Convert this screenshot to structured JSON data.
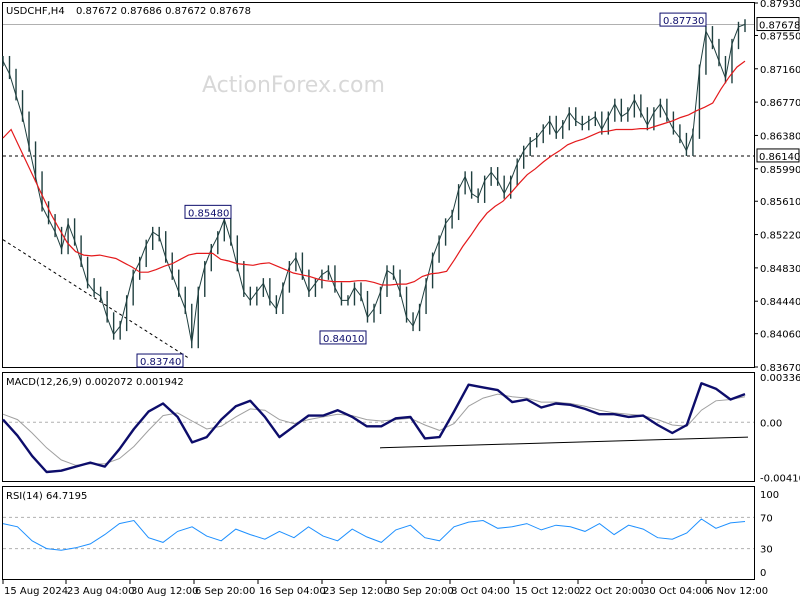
{
  "header": {
    "symbol": "USDCHF,H4",
    "ohlc": "0.87672 0.87686 0.87672 0.87678"
  },
  "watermark": "ActionForex.com",
  "colors": {
    "background": "#ffffff",
    "frame": "#000000",
    "price": "#1f3f3f",
    "ma": "#e41a1c",
    "macd": "#0d0d6b",
    "signal": "#a0a0a0",
    "rsi": "#1e90ff",
    "label_border": "#0d0d6b",
    "watermark": "#d8d8d8"
  },
  "chart_data": [
    {
      "type": "line",
      "panel": "price",
      "title": "USDCHF,H4",
      "ylim": [
        0.8367,
        0.8793
      ],
      "y_ticks": [
        "0.87930",
        "0.87550",
        "0.87160",
        "0.86770",
        "0.86380",
        "0.85990",
        "0.85610",
        "0.85220",
        "0.84830",
        "0.84440",
        "0.84060",
        "0.83670"
      ],
      "x_ticks": [
        "15 Aug 2024",
        "23 Aug 04:00",
        "30 Aug 12:00",
        "6 Sep 20:00",
        "16 Sep 04:00",
        "23 Sep 12:00",
        "30 Sep 20:00",
        "8 Oct 04:00",
        "15 Oct 12:00",
        "22 Oct 20:00",
        "30 Oct 04:00",
        "6 Nov 12:00"
      ],
      "current_price_label": "0.87678",
      "level_label": "0.86140",
      "annotations": [
        "0.87730",
        "0.85480",
        "0.83740",
        "0.84010"
      ],
      "series": [
        {
          "values": [
            0.8725,
            0.871,
            0.8685,
            0.866,
            0.8625,
            0.859,
            0.8555,
            0.854,
            0.8525,
            0.8505,
            0.8535,
            0.8515,
            0.849,
            0.8465,
            0.8455,
            0.845,
            0.8425,
            0.8405,
            0.8415,
            0.8445,
            0.8475,
            0.849,
            0.851,
            0.8525,
            0.852,
            0.8495,
            0.8475,
            0.8455,
            0.8435,
            0.8395,
            0.8455,
            0.8485,
            0.8505,
            0.852,
            0.854,
            0.8515,
            0.8485,
            0.8455,
            0.8445,
            0.8455,
            0.8465,
            0.8445,
            0.8435,
            0.846,
            0.8485,
            0.8495,
            0.8475,
            0.8455,
            0.8465,
            0.8475,
            0.848,
            0.846,
            0.8445,
            0.8445,
            0.846,
            0.845,
            0.8425,
            0.8435,
            0.8455,
            0.848,
            0.8475,
            0.8455,
            0.8425,
            0.8415,
            0.8435,
            0.8465,
            0.8495,
            0.8515,
            0.8535,
            0.8545,
            0.8575,
            0.859,
            0.857,
            0.8565,
            0.8585,
            0.8595,
            0.8585,
            0.857,
            0.8585,
            0.8605,
            0.862,
            0.863,
            0.8635,
            0.8645,
            0.8655,
            0.864,
            0.865,
            0.8665,
            0.8655,
            0.865,
            0.8655,
            0.866,
            0.8645,
            0.866,
            0.8675,
            0.866,
            0.8665,
            0.868,
            0.8665,
            0.865,
            0.8665,
            0.8675,
            0.866,
            0.8645,
            0.8635,
            0.862,
            0.864,
            0.8715,
            0.876,
            0.8745,
            0.8725,
            0.8705,
            0.8745,
            0.8765,
            0.8768
          ]
        },
        {
          "name": "",
          "values": [
            0.8635,
            0.8645,
            0.8625,
            0.8605,
            0.8585,
            0.8565,
            0.8545,
            0.8528,
            0.8512,
            0.8502,
            0.8498,
            0.8497,
            0.8498,
            0.8496,
            0.8494,
            0.8489,
            0.8484,
            0.8478,
            0.8478,
            0.8481,
            0.8485,
            0.8488,
            0.8493,
            0.8498,
            0.85,
            0.85,
            0.85,
            0.8493,
            0.8491,
            0.8488,
            0.8487,
            0.8486,
            0.8488,
            0.8489,
            0.8485,
            0.8481,
            0.8477,
            0.8475,
            0.8473,
            0.847,
            0.8468,
            0.8467,
            0.8467,
            0.8467,
            0.8468,
            0.8468,
            0.8466,
            0.8463,
            0.8463,
            0.8464,
            0.8464,
            0.8467,
            0.8473,
            0.8476,
            0.8477,
            0.8479,
            0.8493,
            0.8508,
            0.8521,
            0.8535,
            0.8547,
            0.8555,
            0.8561,
            0.8571,
            0.8582,
            0.8592,
            0.8599,
            0.8607,
            0.8614,
            0.862,
            0.8627,
            0.8631,
            0.8634,
            0.8638,
            0.8642,
            0.8643,
            0.8645,
            0.8645,
            0.8645,
            0.8646,
            0.8646,
            0.8649,
            0.8652,
            0.8655,
            0.8659,
            0.8662,
            0.8667,
            0.8671,
            0.8676,
            0.8692,
            0.8706,
            0.8718,
            0.8725
          ]
        }
      ]
    },
    {
      "type": "line",
      "panel": "macd",
      "title": "MACD(12,26,9) 0.002072 0.001942",
      "ylim": [
        -0.00437,
        0.00367
      ],
      "y_ticks": [
        "0.003361",
        "0.00",
        "-0.004108"
      ],
      "series": [
        {
          "name": "MACD",
          "values": [
            0.0002,
            -0.001,
            -0.0025,
            -0.0037,
            -0.0036,
            -0.0033,
            -0.003,
            -0.0033,
            -0.002,
            -0.0005,
            0.0008,
            0.0014,
            0.0004,
            -0.0015,
            -0.0011,
            0.0002,
            0.0012,
            0.0016,
            0.0004,
            -0.0011,
            -0.0003,
            0.0005,
            0.0005,
            0.0009,
            0.0004,
            -0.0003,
            -0.0003,
            0.0003,
            0.0004,
            -0.0012,
            -0.0011,
            0.0008,
            0.0028,
            0.0026,
            0.0024,
            0.0015,
            0.0017,
            0.0011,
            0.0014,
            0.0013,
            0.001,
            0.0006,
            0.0006,
            0.0004,
            0.0005,
            -0.0002,
            -0.0008,
            -0.0002,
            0.0029,
            0.0025,
            0.0017,
            0.0021
          ]
        },
        {
          "name": "Signal",
          "values": [
            0.0006,
            0.0002,
            -0.0008,
            -0.0019,
            -0.0028,
            -0.0032,
            -0.0031,
            -0.0031,
            -0.0027,
            -0.0018,
            -0.0006,
            0.0005,
            0.0007,
            0.0001,
            -0.0005,
            -0.0003,
            0.0004,
            0.001,
            0.0009,
            0.0002,
            -0.0001,
            0.0002,
            0.0004,
            0.0006,
            0.0005,
            0.0002,
            0.0001,
            0.0002,
            0.0003,
            -0.0002,
            -0.0006,
            -0.0001,
            0.0012,
            0.0018,
            0.0021,
            0.0019,
            0.0018,
            0.0015,
            0.0015,
            0.0014,
            0.0012,
            0.0009,
            0.0007,
            0.0006,
            0.0005,
            0.0002,
            -0.0002,
            -0.0003,
            0.0009,
            0.0016,
            0.0017,
            0.0019
          ]
        }
      ]
    },
    {
      "type": "line",
      "panel": "rsi",
      "title": "RSI(14) 64.7195",
      "ylim": [
        0,
        100
      ],
      "y_ticks": [
        "100",
        "70",
        "30",
        "0"
      ],
      "series": [
        {
          "name": "RSI",
          "values": [
            62,
            58,
            40,
            30,
            28,
            31,
            36,
            48,
            62,
            66,
            44,
            38,
            52,
            58,
            46,
            40,
            55,
            48,
            42,
            52,
            44,
            58,
            46,
            40,
            55,
            45,
            38,
            54,
            60,
            44,
            40,
            58,
            64,
            66,
            56,
            58,
            62,
            54,
            60,
            58,
            52,
            62,
            48,
            60,
            55,
            44,
            42,
            50,
            68,
            56,
            63,
            64.7
          ]
        }
      ]
    }
  ]
}
